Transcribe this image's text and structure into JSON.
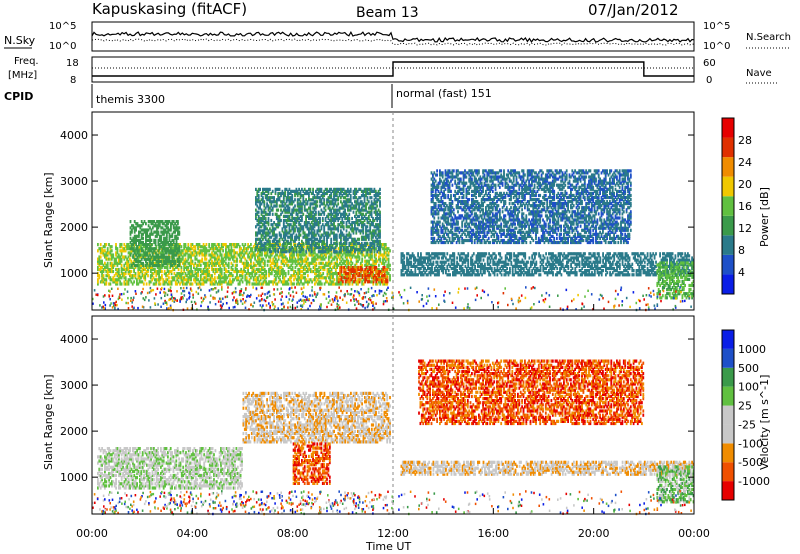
{
  "header": {
    "station": "Kapuskasing (fitACF)",
    "beam": "Beam 13",
    "date": "07/Jan/2012"
  },
  "noise_panel": {
    "left_label": "N.Sky",
    "right_label": "N.Search",
    "left_ticks": [
      "10^5",
      "10^0"
    ],
    "right_ticks": [
      "10^5",
      "10^0"
    ]
  },
  "freq_panel": {
    "left_label_top": "Freq.",
    "left_label_bottom": "[MHz]",
    "right_label": "Nave",
    "left_ticks": [
      "18",
      "8"
    ],
    "right_ticks": [
      "60",
      "0"
    ]
  },
  "cpid": {
    "label": "CPID",
    "modes": [
      {
        "name": "themis 3300",
        "start_h": 0,
        "end_h": 12
      },
      {
        "name": "normal (fast) 151",
        "start_h": 12,
        "end_h": 24
      }
    ]
  },
  "colors": {
    "power_scale": [
      "#0a1ee6",
      "#1e50c8",
      "#2a7a8a",
      "#3a9a4a",
      "#60c040",
      "#f0c800",
      "#f08c00",
      "#e03000",
      "#e60000"
    ],
    "velocity_scale": [
      "#e60000",
      "#f05000",
      "#f08c00",
      "#c8c8c8",
      "#c8c8c8",
      "#60c040",
      "#3a9a4a",
      "#1e50c8",
      "#0a1ee6"
    ]
  },
  "chart_data": [
    {
      "type": "heatmap",
      "panel": "power",
      "ylabel": "Slant Range [km]",
      "ylim": [
        200,
        4500
      ],
      "yticks": [
        "1000",
        "2000",
        "3000",
        "4000"
      ],
      "xlim": [
        0,
        24
      ],
      "colorbar": {
        "label": "Power [dB]",
        "ticks": [
          "4",
          "8",
          "12",
          "16",
          "20",
          "24",
          "28"
        ],
        "range": [
          0,
          30
        ]
      },
      "regions": [
        {
          "t0": 0.2,
          "t1": 11.9,
          "r0": 800,
          "r1": 1700,
          "level": 16
        },
        {
          "t0": 1.5,
          "t1": 3.5,
          "r0": 1200,
          "r1": 2200,
          "level": 12
        },
        {
          "t0": 6.5,
          "t1": 11.5,
          "r0": 1500,
          "r1": 2900,
          "level": 10
        },
        {
          "t0": 9.8,
          "t1": 11.8,
          "r0": 850,
          "r1": 1200,
          "level": 24
        },
        {
          "t0": 12.3,
          "t1": 24.0,
          "r0": 1000,
          "r1": 1500,
          "level": 8
        },
        {
          "t0": 13.5,
          "t1": 21.5,
          "r0": 1700,
          "r1": 3300,
          "level": 7
        },
        {
          "t0": 22.5,
          "t1": 24.0,
          "r0": 500,
          "r1": 1300,
          "level": 14
        }
      ]
    },
    {
      "type": "heatmap",
      "panel": "velocity",
      "xlabel": "Time UT",
      "ylabel": "Slant Range [km]",
      "ylim": [
        200,
        4500
      ],
      "yticks": [
        "1000",
        "2000",
        "3000",
        "4000"
      ],
      "xlim": [
        0,
        24
      ],
      "xticks": [
        "00:00",
        "04:00",
        "08:00",
        "12:00",
        "16:00",
        "20:00",
        "00:00"
      ],
      "colorbar": {
        "label": "Velocity [m s^-1]",
        "ticks": [
          "1000",
          "500",
          "100",
          "25",
          "-25",
          "-100",
          "-500",
          "-1000"
        ]
      },
      "regions": [
        {
          "t0": 0.2,
          "t1": 6.0,
          "r0": 800,
          "r1": 1700,
          "level": 4
        },
        {
          "t0": 6.0,
          "t1": 11.9,
          "r0": 1800,
          "r1": 2900,
          "level": 3
        },
        {
          "t0": 8.0,
          "t1": 9.5,
          "r0": 900,
          "r1": 1800,
          "level": 1
        },
        {
          "t0": 12.3,
          "t1": 24.0,
          "r0": 1100,
          "r1": 1400,
          "level": 3
        },
        {
          "t0": 13.0,
          "t1": 22.0,
          "r0": 2200,
          "r1": 3600,
          "level": 1
        },
        {
          "t0": 22.5,
          "t1": 24.0,
          "r0": 500,
          "r1": 1300,
          "level": 5
        }
      ]
    }
  ]
}
